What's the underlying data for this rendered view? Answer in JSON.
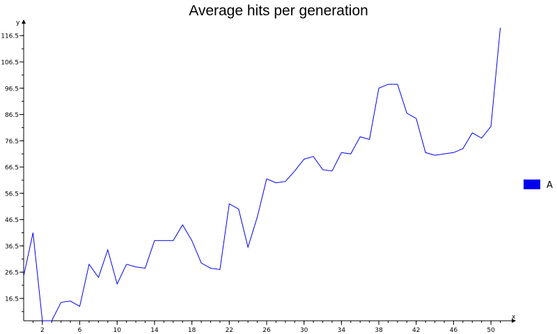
{
  "chart_data": {
    "type": "line",
    "title": "Average hits per generation",
    "xlabel": "x",
    "ylabel": "y",
    "xlim": [
      0,
      52
    ],
    "ylim": [
      8,
      120
    ],
    "x_ticks": [
      2,
      6,
      10,
      14,
      18,
      22,
      26,
      30,
      34,
      38,
      42,
      46,
      50
    ],
    "y_ticks": [
      16.5,
      26.5,
      36.5,
      46.5,
      56.5,
      66.5,
      76.5,
      86.5,
      96.5,
      106.5,
      116.5
    ],
    "grid": false,
    "legend_position": "right",
    "series": [
      {
        "name": "A",
        "color": "#0000ee",
        "x": [
          0,
          1,
          2,
          3,
          4,
          5,
          6,
          7,
          8,
          9,
          10,
          11,
          12,
          13,
          14,
          15,
          16,
          17,
          18,
          19,
          20,
          21,
          22,
          23,
          24,
          25,
          26,
          27,
          28,
          29,
          30,
          31,
          32,
          33,
          34,
          35,
          36,
          37,
          38,
          39,
          40,
          41,
          42,
          43,
          44,
          45,
          46,
          47,
          48,
          49,
          50,
          51
        ],
        "values": [
          25,
          41.5,
          7.5,
          8,
          15,
          15.5,
          13.5,
          29.5,
          24.5,
          35,
          22,
          29.5,
          28.5,
          28,
          38.5,
          38.5,
          38.5,
          44.5,
          38.5,
          30,
          28,
          27.5,
          52.5,
          50.5,
          36,
          47.5,
          62,
          60.5,
          61,
          65,
          69.5,
          70.5,
          65.5,
          65,
          72,
          71.5,
          78,
          77,
          96.5,
          98,
          98,
          87,
          85,
          72,
          71,
          71.5,
          72,
          73.5,
          79.5,
          77.5,
          82,
          119.5
        ]
      }
    ]
  }
}
